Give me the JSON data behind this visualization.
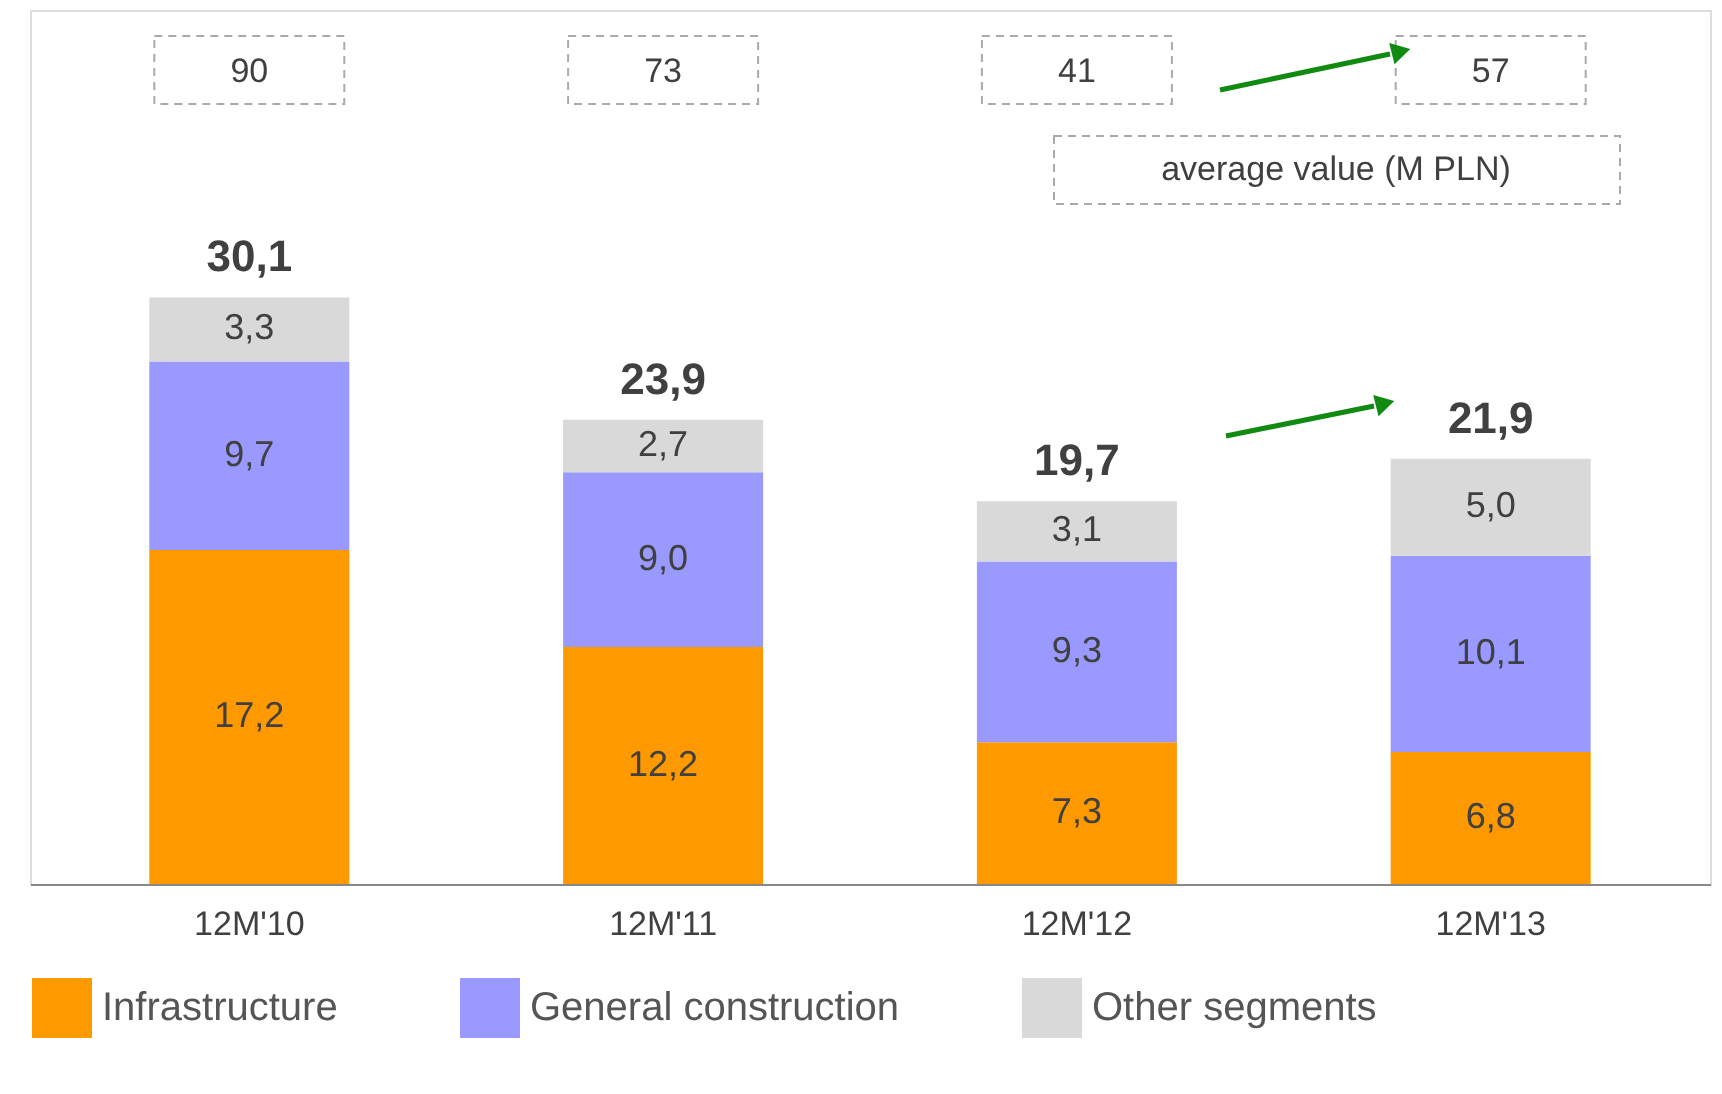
{
  "chart_data": {
    "type": "bar",
    "stacked": true,
    "categories": [
      "12M'10",
      "12M'11",
      "12M'12",
      "12M'13"
    ],
    "series": [
      {
        "name": "Infrastructure",
        "color": "#ff9900",
        "values": [
          17.2,
          12.2,
          7.3,
          6.8
        ],
        "value_labels": [
          "17,2",
          "12,2",
          "7,3",
          "6,8"
        ]
      },
      {
        "name": "General construction",
        "color": "#9999ff",
        "values": [
          9.7,
          9.0,
          9.3,
          10.1
        ],
        "value_labels": [
          "9,7",
          "9,0",
          "9,3",
          "10,1"
        ]
      },
      {
        "name": "Other segments",
        "color": "#d9d9d9",
        "values": [
          3.3,
          2.7,
          3.1,
          5.0
        ],
        "value_labels": [
          "3,3",
          "2,7",
          "3,1",
          "5,0"
        ]
      }
    ],
    "totals": [
      "30,1",
      "23,9",
      "19,7",
      "21,9"
    ],
    "annotations": [
      "90",
      "73",
      "41",
      "57",
      "average value (M PLN)"
    ],
    "legend": "bottom",
    "grid": false
  }
}
